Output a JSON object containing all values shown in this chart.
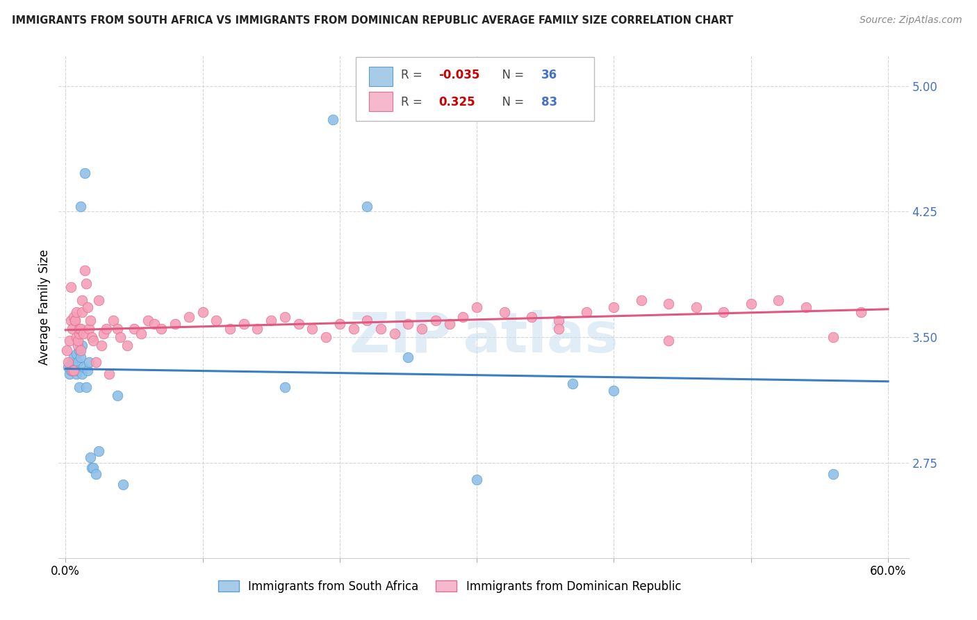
{
  "title": "IMMIGRANTS FROM SOUTH AFRICA VS IMMIGRANTS FROM DOMINICAN REPUBLIC AVERAGE FAMILY SIZE CORRELATION CHART",
  "source": "Source: ZipAtlas.com",
  "ylabel": "Average Family Size",
  "ylim": [
    2.18,
    5.18
  ],
  "xlim": [
    -0.005,
    0.615
  ],
  "yticks": [
    2.75,
    3.5,
    4.25,
    5.0
  ],
  "xticks": [
    0.0,
    0.1,
    0.2,
    0.3,
    0.4,
    0.5,
    0.6
  ],
  "color_blue_fill": "#a8cce8",
  "color_blue_edge": "#5a9fd4",
  "color_blue_scatter": "#90c0e8",
  "color_pink_fill": "#f5b8cc",
  "color_pink_edge": "#e07090",
  "color_pink_scatter": "#f5a0b8",
  "color_blue_line": "#3a7ec0",
  "color_pink_line": "#e05880",
  "watermark_color": "#c8ddf0",
  "sa_x": [
    0.002,
    0.003,
    0.004,
    0.005,
    0.006,
    0.007,
    0.008,
    0.008,
    0.009,
    0.009,
    0.01,
    0.01,
    0.011,
    0.011,
    0.012,
    0.012,
    0.013,
    0.014,
    0.015,
    0.016,
    0.017,
    0.018,
    0.019,
    0.02,
    0.022,
    0.024,
    0.038,
    0.042,
    0.16,
    0.22,
    0.25,
    0.37,
    0.4,
    0.56,
    0.3,
    0.195
  ],
  "sa_y": [
    3.32,
    3.28,
    3.3,
    3.35,
    3.38,
    3.32,
    3.28,
    3.4,
    3.35,
    3.3,
    3.42,
    3.2,
    3.38,
    4.28,
    3.45,
    3.28,
    3.32,
    4.48,
    3.2,
    3.3,
    3.35,
    2.78,
    2.72,
    2.72,
    2.68,
    2.82,
    3.15,
    2.62,
    3.2,
    4.28,
    3.38,
    3.22,
    3.18,
    2.68,
    2.65,
    4.8
  ],
  "dr_x": [
    0.001,
    0.002,
    0.003,
    0.004,
    0.004,
    0.005,
    0.005,
    0.006,
    0.006,
    0.007,
    0.007,
    0.008,
    0.008,
    0.009,
    0.009,
    0.01,
    0.01,
    0.011,
    0.011,
    0.012,
    0.012,
    0.013,
    0.014,
    0.015,
    0.016,
    0.017,
    0.018,
    0.019,
    0.02,
    0.022,
    0.024,
    0.026,
    0.028,
    0.03,
    0.032,
    0.035,
    0.038,
    0.04,
    0.045,
    0.05,
    0.055,
    0.06,
    0.065,
    0.07,
    0.08,
    0.09,
    0.1,
    0.11,
    0.12,
    0.13,
    0.14,
    0.15,
    0.16,
    0.17,
    0.18,
    0.19,
    0.2,
    0.21,
    0.22,
    0.23,
    0.24,
    0.25,
    0.26,
    0.27,
    0.28,
    0.29,
    0.3,
    0.32,
    0.34,
    0.36,
    0.38,
    0.4,
    0.42,
    0.44,
    0.46,
    0.48,
    0.5,
    0.52,
    0.54,
    0.56,
    0.58,
    0.44,
    0.36
  ],
  "dr_y": [
    3.42,
    3.35,
    3.48,
    3.6,
    3.8,
    3.55,
    3.3,
    3.3,
    3.62,
    3.6,
    3.6,
    3.65,
    3.5,
    3.45,
    3.48,
    3.52,
    3.55,
    3.55,
    3.42,
    3.65,
    3.72,
    3.52,
    3.9,
    3.82,
    3.68,
    3.55,
    3.6,
    3.5,
    3.48,
    3.35,
    3.72,
    3.45,
    3.52,
    3.55,
    3.28,
    3.6,
    3.55,
    3.5,
    3.45,
    3.55,
    3.52,
    3.6,
    3.58,
    3.55,
    3.58,
    3.62,
    3.65,
    3.6,
    3.55,
    3.58,
    3.55,
    3.6,
    3.62,
    3.58,
    3.55,
    3.5,
    3.58,
    3.55,
    3.6,
    3.55,
    3.52,
    3.58,
    3.55,
    3.6,
    3.58,
    3.62,
    3.68,
    3.65,
    3.62,
    3.6,
    3.65,
    3.68,
    3.72,
    3.7,
    3.68,
    3.65,
    3.7,
    3.72,
    3.68,
    3.5,
    3.65,
    3.48,
    3.55
  ]
}
